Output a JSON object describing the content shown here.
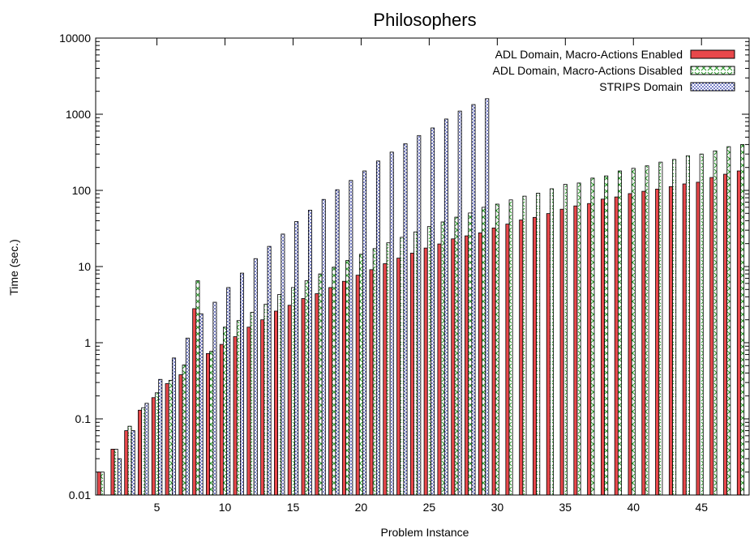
{
  "chart_data": {
    "type": "bar",
    "title": "Philosophers",
    "xlabel": "Problem Instance",
    "ylabel": "Time (sec.)",
    "y_scale": "log",
    "ylim": [
      0.01,
      10000
    ],
    "xlim": [
      0.5,
      48.5
    ],
    "x_ticks": [
      5,
      10,
      15,
      20,
      25,
      30,
      35,
      40,
      45
    ],
    "y_ticks": [
      0.01,
      0.1,
      1,
      10,
      100,
      1000,
      10000
    ],
    "y_tick_labels": [
      "0.01",
      "0.1",
      "1",
      "10",
      "100",
      "1000",
      "10000"
    ],
    "legend_position": "top-right",
    "x": [
      1,
      2,
      3,
      4,
      5,
      6,
      7,
      8,
      9,
      10,
      11,
      12,
      13,
      14,
      15,
      16,
      17,
      18,
      19,
      20,
      21,
      22,
      23,
      24,
      25,
      26,
      27,
      28,
      29,
      30,
      31,
      32,
      33,
      34,
      35,
      36,
      37,
      38,
      39,
      40,
      41,
      42,
      43,
      44,
      45,
      46,
      47,
      48
    ],
    "series": [
      {
        "name": "ADL Domain, Macro-Actions Enabled",
        "color": "#e8484b",
        "pattern": "solid",
        "values": [
          0.02,
          0.04,
          0.07,
          0.13,
          0.19,
          0.29,
          0.38,
          2.8,
          0.72,
          0.95,
          1.2,
          1.6,
          2.0,
          2.6,
          3.1,
          3.8,
          4.4,
          5.3,
          6.4,
          7.7,
          9.1,
          10.9,
          12.9,
          15.0,
          17.5,
          19.8,
          23.1,
          25.3,
          27.7,
          32.1,
          36.1,
          40.9,
          44.2,
          49.6,
          56.6,
          62.5,
          67.2,
          76.8,
          82.0,
          90.7,
          97.3,
          103.9,
          112.1,
          121.6,
          128.0,
          147.7,
          163.1,
          180.0
        ]
      },
      {
        "name": "ADL Domain, Macro-Actions Disabled",
        "color": "#2e9d2e",
        "pattern": "cross",
        "values": [
          0.02,
          0.04,
          0.08,
          0.14,
          0.22,
          0.32,
          0.51,
          6.5,
          0.77,
          1.6,
          1.95,
          2.5,
          3.2,
          4.3,
          5.3,
          6.5,
          8.0,
          9.8,
          12.0,
          14.5,
          17.2,
          20.5,
          24.2,
          28.5,
          33.5,
          38.5,
          44.5,
          50.5,
          60.0,
          66.0,
          75.0,
          84.0,
          92.0,
          105.0,
          120.0,
          125.0,
          145.0,
          155.0,
          180.0,
          195.0,
          210.0,
          235.0,
          255.0,
          285.0,
          300.0,
          330.0,
          375.0,
          400.0
        ]
      },
      {
        "name": "STRIPS Domain",
        "color": "#2330a8",
        "pattern": "dots",
        "values": [
          null,
          0.03,
          0.07,
          0.16,
          0.33,
          0.63,
          1.15,
          2.4,
          3.4,
          5.3,
          8.2,
          12.7,
          18.4,
          26.7,
          39.0,
          55.0,
          76.0,
          102.0,
          135.0,
          180.0,
          243.0,
          318.0,
          410.0,
          525.0,
          660.0,
          865.0,
          1100.0,
          1340.0,
          1600.0,
          null,
          null,
          null,
          null,
          null,
          null,
          null,
          null,
          null,
          null,
          null,
          null,
          null,
          null,
          null,
          null,
          null,
          null,
          null
        ]
      }
    ]
  }
}
